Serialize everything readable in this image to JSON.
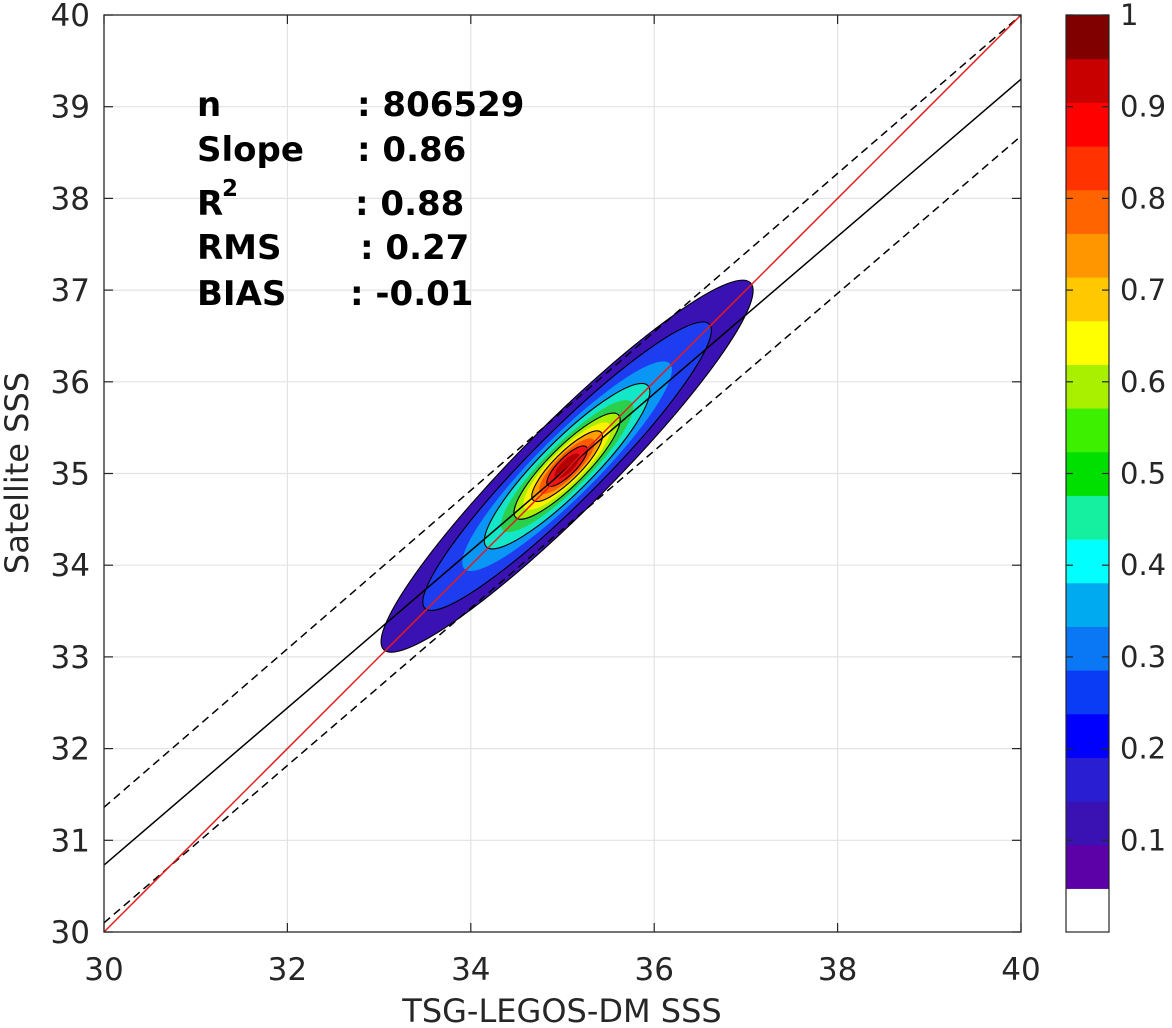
{
  "chart_data": {
    "type": "heatmap",
    "subtype": "2d density contour scatter comparison",
    "xlabel": "TSG-LEGOS-DM SSS",
    "ylabel": "Satellite SSS",
    "xlim": [
      30,
      40
    ],
    "ylim": [
      30,
      40
    ],
    "xticks": [
      "30",
      "32",
      "34",
      "36",
      "38",
      "40"
    ],
    "yticks": [
      "30",
      "31",
      "32",
      "33",
      "34",
      "35",
      "36",
      "37",
      "38",
      "39",
      "40"
    ],
    "grid": true,
    "stats": [
      {
        "key": "n",
        "value": ": 806529"
      },
      {
        "key": "Slope",
        "value": ": 0.86"
      },
      {
        "key": "R",
        "sup": "2",
        "value": ": 0.88"
      },
      {
        "key": "RMS",
        "value": ": 0.27"
      },
      {
        "key": "BIAS",
        "value": ": -0.01"
      }
    ],
    "lines": {
      "identity": {
        "from": [
          30,
          30
        ],
        "to": [
          40,
          40
        ],
        "color": "#e41a1c"
      },
      "fit": {
        "from": [
          30,
          30.73
        ],
        "to": [
          40,
          39.3
        ],
        "color": "#000000",
        "style": "solid"
      },
      "upper_bound": {
        "from": [
          30,
          31.36
        ],
        "to": [
          40,
          40.0
        ],
        "color": "#000000",
        "style": "dashed"
      },
      "lower_bound": {
        "from": [
          30,
          30.1
        ],
        "to": [
          40,
          38.68
        ],
        "color": "#000000",
        "style": "dashed"
      }
    },
    "density": {
      "center": [
        35.05,
        35.08
      ],
      "levels": [
        {
          "level": 0.05,
          "color": "#3a12b4",
          "half_major": 2.0,
          "half_minor": 0.34
        },
        {
          "level": 0.15,
          "color": "#1e3cf0",
          "half_major": 1.55,
          "half_minor": 0.27
        },
        {
          "level": 0.25,
          "color": "#0a96f5",
          "half_major": 1.12,
          "half_minor": 0.23
        },
        {
          "level": 0.35,
          "color": "#14e6c8",
          "half_major": 0.88,
          "half_minor": 0.2
        },
        {
          "level": 0.45,
          "color": "#2bd04a",
          "half_major": 0.7,
          "half_minor": 0.17
        },
        {
          "level": 0.55,
          "color": "#a8f000",
          "half_major": 0.56,
          "half_minor": 0.145
        },
        {
          "level": 0.65,
          "color": "#fff200",
          "half_major": 0.46,
          "half_minor": 0.125
        },
        {
          "level": 0.72,
          "color": "#ffa000",
          "half_major": 0.37,
          "half_minor": 0.105
        },
        {
          "level": 0.8,
          "color": "#ff5a00",
          "half_major": 0.29,
          "half_minor": 0.088
        },
        {
          "level": 0.88,
          "color": "#f01414",
          "half_major": 0.21,
          "half_minor": 0.068
        },
        {
          "level": 0.95,
          "color": "#b40000",
          "half_major": 0.13,
          "half_minor": 0.048
        }
      ],
      "outlined_levels": [
        0.05,
        0.15,
        0.35,
        0.55,
        0.72,
        0.88
      ]
    },
    "colorbar": {
      "range": [
        0,
        1
      ],
      "labels": [
        "0.1",
        "0.2",
        "0.3",
        "0.4",
        "0.5",
        "0.6",
        "0.7",
        "0.8",
        "0.9",
        "1"
      ],
      "colors": [
        "#ffffff",
        "#5c00a8",
        "#3a12b4",
        "#2a1ed2",
        "#0000ff",
        "#0a3cf5",
        "#0a78f5",
        "#00aaf0",
        "#00ffff",
        "#14f0a0",
        "#00e000",
        "#3cf000",
        "#a8f000",
        "#ffff00",
        "#ffc800",
        "#ff9600",
        "#ff6400",
        "#ff3200",
        "#ff0000",
        "#c80000",
        "#800000"
      ]
    }
  }
}
